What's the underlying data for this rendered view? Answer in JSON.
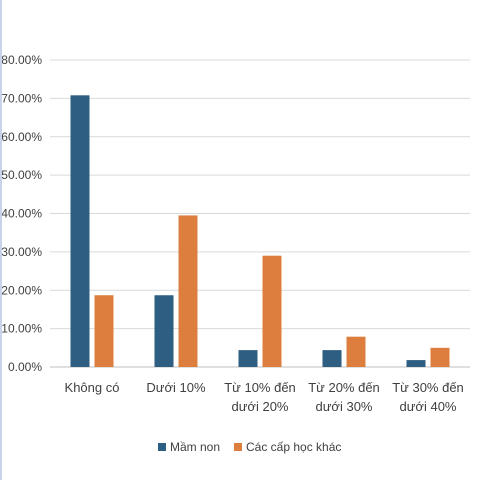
{
  "chart_data": {
    "type": "bar",
    "categories": [
      [
        "Không có"
      ],
      [
        "Dưới 10%"
      ],
      [
        "Từ 10% đến",
        "dưới 20%"
      ],
      [
        "Từ 20% đến",
        "dưới 30%"
      ],
      [
        "Từ 30% đến",
        "dưới 40%"
      ]
    ],
    "series": [
      {
        "name": "Mầm non",
        "color": "#2e5f82",
        "values": [
          0.708,
          0.187,
          0.044,
          0.044,
          0.018
        ]
      },
      {
        "name": "Các cấp học khác",
        "color": "#dd7d3e",
        "values": [
          0.187,
          0.395,
          0.29,
          0.079,
          0.05
        ]
      }
    ],
    "y_ticks": [
      "0.00%",
      "10.00%",
      "20.00%",
      "30.00%",
      "40.00%",
      "50.00%",
      "60.00%",
      "70.00%",
      "80.00%"
    ],
    "ylim": [
      0,
      0.8
    ],
    "grid": true,
    "legend_position": "bottom"
  }
}
